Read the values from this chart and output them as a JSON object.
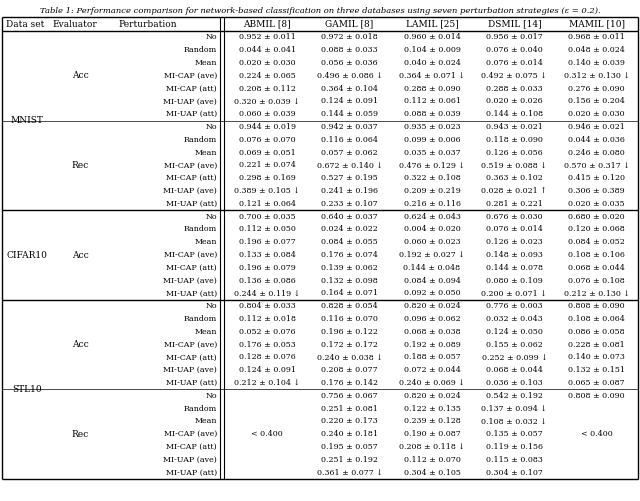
{
  "title": "Table 1: Performance comparison for network-based classification on three databases using seven perturbation strategies (ε = 0.2).",
  "col_headers": [
    "Data set",
    "Evaluator",
    "Perturbation",
    "ABMIL [8]",
    "GAMIL [8]",
    "LAMIL [25]",
    "DSMIL [14]",
    "MAMIL [10]"
  ],
  "rows": [
    [
      "MNIST",
      "Acc",
      "No",
      "0.952 ± 0.011",
      "0.972 ± 0.018",
      "0.960 ± 0.014",
      "0.956 ± 0.017",
      "0.968 ± 0.011"
    ],
    [
      "",
      "",
      "Random",
      "0.044 ± 0.041",
      "0.088 ± 0.033",
      "0.104 ± 0.009",
      "0.076 ± 0.040",
      "0.048 ± 0.024"
    ],
    [
      "",
      "",
      "Mean",
      "0.020 ± 0.030",
      "0.056 ± 0.036",
      "0.040 ± 0.024",
      "0.076 ± 0.014",
      "0.140 ± 0.039"
    ],
    [
      "",
      "",
      "MI-CAP (ave)",
      "0.224 ± 0.065",
      "0.496 ± 0.086 ↓",
      "0.364 ± 0.071 ↓",
      "0.492 ± 0.075 ↓",
      "0.312 ± 0.130 ↓"
    ],
    [
      "",
      "",
      "MI-CAP (att)",
      "0.208 ± 0.112",
      "0.364 ± 0.104",
      "0.288 ± 0.090",
      "0.288 ± 0.033",
      "0.276 ± 0.090"
    ],
    [
      "",
      "",
      "MI-UAP (ave)",
      "0.320 ± 0.039 ↓",
      "0.124 ± 0.091",
      "0.112 ± 0.061",
      "0.020 ± 0.026",
      "0.156 ± 0.204"
    ],
    [
      "",
      "",
      "MI-UAP (att)",
      "0.060 ± 0.039",
      "0.144 ± 0.059",
      "0.088 ± 0.039",
      "0.144 ± 0.108",
      "0.020 ± 0.030"
    ],
    [
      "",
      "Rec",
      "No",
      "0.944 ± 0.019",
      "0.942 ± 0.037",
      "0.935 ± 0.023",
      "0.943 ± 0.021",
      "0.946 ± 0.021"
    ],
    [
      "",
      "",
      "Random",
      "0.076 ± 0.070",
      "0.116 ± 0.064",
      "0.099 ± 0.006",
      "0.118 ± 0.090",
      "0.044 ± 0.036"
    ],
    [
      "",
      "",
      "Mean",
      "0.069 ± 0.051",
      "0.057 ± 0.062",
      "0.035 ± 0.037",
      "0.126 ± 0.056",
      "0.246 ± 0.080"
    ],
    [
      "",
      "",
      "MI-CAP (ave)",
      "0.221 ± 0.074",
      "0.672 ± 0.140 ↓",
      "0.476 ± 0.129 ↓",
      "0.519 ± 0.088 ↓",
      "0.570 ± 0.317 ↓"
    ],
    [
      "",
      "",
      "MI-CAP (att)",
      "0.298 ± 0.169",
      "0.527 ± 0.195",
      "0.322 ± 0.108",
      "0.363 ± 0.102",
      "0.415 ± 0.120"
    ],
    [
      "",
      "",
      "MI-UAP (ave)",
      "0.389 ± 0.105 ↓",
      "0.241 ± 0.196",
      "0.209 ± 0.219",
      "0.028 ± 0.021 ↑",
      "0.306 ± 0.389"
    ],
    [
      "",
      "",
      "MI-UAP (att)",
      "0.121 ± 0.064",
      "0.233 ± 0.107",
      "0.216 ± 0.116",
      "0.281 ± 0.221",
      "0.020 ± 0.035"
    ],
    [
      "CIFAR10",
      "Acc",
      "No",
      "0.700 ± 0.035",
      "0.640 ± 0.037",
      "0.624 ± 0.043",
      "0.676 ± 0.030",
      "0.680 ± 0.020"
    ],
    [
      "",
      "",
      "Random",
      "0.112 ± 0.050",
      "0.024 ± 0.022",
      "0.004 ± 0.020",
      "0.076 ± 0.014",
      "0.120 ± 0.068"
    ],
    [
      "",
      "",
      "Mean",
      "0.196 ± 0.077",
      "0.084 ± 0.055",
      "0.060 ± 0.023",
      "0.126 ± 0.023",
      "0.084 ± 0.052"
    ],
    [
      "",
      "",
      "MI-CAP (ave)",
      "0.133 ± 0.084",
      "0.176 ± 0.074",
      "0.192 ± 0.027 ↓",
      "0.148 ± 0.093",
      "0.108 ± 0.106"
    ],
    [
      "",
      "",
      "MI-CAP (att)",
      "0.196 ± 0.079",
      "0.139 ± 0.062",
      "0.144 ± 0.048",
      "0.144 ± 0.078",
      "0.068 ± 0.044"
    ],
    [
      "",
      "",
      "MI-UAP (ave)",
      "0.136 ± 0.086",
      "0.132 ± 0.098",
      "0.084 ± 0.094",
      "0.080 ± 0.109",
      "0.076 ± 0.108"
    ],
    [
      "",
      "",
      "MI-UAP (att)",
      "0.244 ± 0.119 ↓",
      "0.164 ± 0.071",
      "0.092 ± 0.050",
      "0.200 ± 0.071 ↓",
      "0.212 ± 0.130 ↓"
    ],
    [
      "STL10",
      "Acc",
      "No",
      "0.804 ± 0.033",
      "0.828 ± 0.054",
      "0.820 ± 0.024",
      "0.776 ± 0.003",
      "0.808 ± 0.090"
    ],
    [
      "",
      "",
      "Random",
      "0.112 ± 0.018",
      "0.116 ± 0.070",
      "0.096 ± 0.062",
      "0.032 ± 0.043",
      "0.108 ± 0.064"
    ],
    [
      "",
      "",
      "Mean",
      "0.052 ± 0.076",
      "0.196 ± 0.122",
      "0.068 ± 0.038",
      "0.124 ± 0.050",
      "0.086 ± 0.058"
    ],
    [
      "",
      "",
      "MI-CAP (ave)",
      "0.176 ± 0.053",
      "0.172 ± 0.172",
      "0.192 ± 0.089",
      "0.155 ± 0.062",
      "0.228 ± 0.081"
    ],
    [
      "",
      "",
      "MI-CAP (att)",
      "0.128 ± 0.076",
      "0.240 ± 0.038 ↓",
      "0.188 ± 0.057",
      "0.252 ± 0.099 ↓",
      "0.140 ± 0.073"
    ],
    [
      "",
      "",
      "MI-UAP (ave)",
      "0.124 ± 0.091",
      "0.208 ± 0.077",
      "0.072 ± 0.044",
      "0.068 ± 0.044",
      "0.132 ± 0.151"
    ],
    [
      "",
      "",
      "MI-UAP (att)",
      "0.212 ± 0.104 ↓",
      "0.176 ± 0.142",
      "0.240 ± 0.069 ↓",
      "0.036 ± 0.103",
      "0.065 ± 0.087"
    ],
    [
      "",
      "Rec",
      "No",
      "",
      "0.756 ± 0.067",
      "0.820 ± 0.024",
      "0.542 ± 0.192",
      "0.808 ± 0.090"
    ],
    [
      "",
      "",
      "Random",
      "",
      "0.251 ± 0.081",
      "0.122 ± 0.135",
      "0.137 ± 0.094 ↓",
      ""
    ],
    [
      "",
      "",
      "Mean",
      "",
      "0.220 ± 0.173",
      "0.239 ± 0.128",
      "0.108 ± 0.032 ↓",
      ""
    ],
    [
      "",
      "",
      "MI-CAP (ave)",
      "< 0.400",
      "0.240 ± 0.181",
      "0.190 ± 0.087",
      "0.135 ± 0.057",
      "< 0.400"
    ],
    [
      "",
      "",
      "MI-CAP (att)",
      "",
      "0.195 ± 0.057",
      "0.208 ± 0.118 ↓",
      "0.119 ± 0.156",
      ""
    ],
    [
      "",
      "",
      "MI-UAP (ave)",
      "",
      "0.251 ± 0.192",
      "0.112 ± 0.070",
      "0.115 ± 0.083",
      ""
    ],
    [
      "",
      "",
      "MI-UAP (att)",
      "",
      "0.361 ± 0.077 ↓",
      "0.304 ± 0.105",
      "0.304 ± 0.107",
      ""
    ]
  ],
  "thick_sep_after": [
    13,
    20
  ],
  "thin_sep_after": [
    6,
    27
  ],
  "title_fontsize": 6.0,
  "header_fontsize": 6.5,
  "cell_fontsize": 5.7,
  "bg_color": "#ffffff"
}
